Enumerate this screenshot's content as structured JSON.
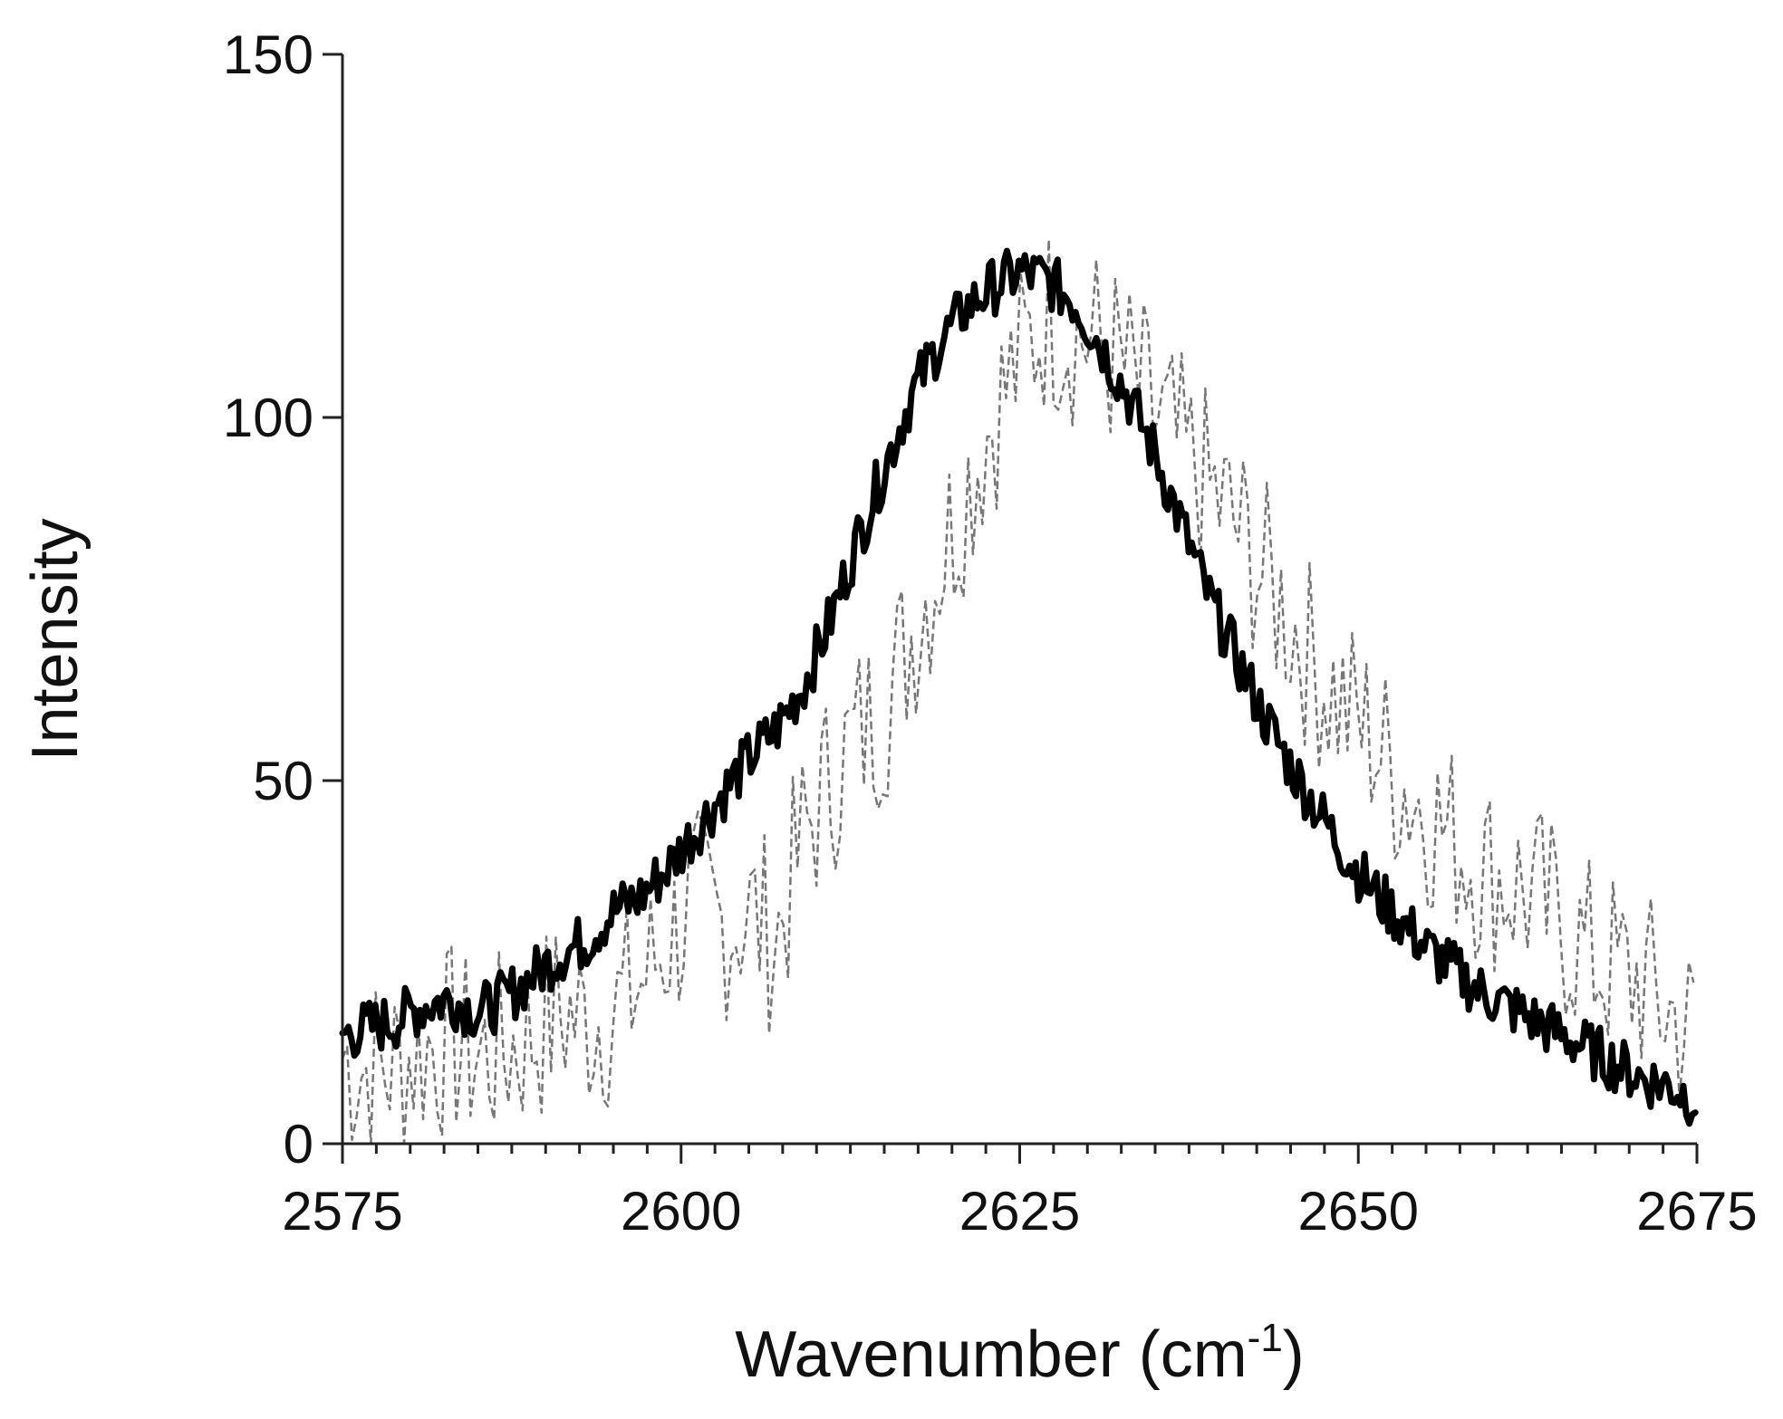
{
  "chart_data": {
    "type": "line",
    "title": "",
    "xlabel": "Wavenumber (cm",
    "xlabel_superscript": "-1",
    "xlabel_suffix": ")",
    "ylabel": "Intensity",
    "xlim": [
      2575,
      2675
    ],
    "ylim": [
      0,
      150
    ],
    "x_ticks": [
      2575,
      2600,
      2625,
      2650,
      2675
    ],
    "y_ticks": [
      0,
      50,
      100,
      150
    ],
    "x_tick_labels": [
      "2575",
      "2600",
      "2625",
      "2650",
      "2675"
    ],
    "y_tick_labels": [
      "0",
      "50",
      "100",
      "150"
    ],
    "x_minor_step": 2.5,
    "grid": false,
    "legend": "none",
    "series": [
      {
        "style": "dashed",
        "color": "#777777",
        "x": [
          2575,
          2577,
          2579,
          2581,
          2583,
          2585,
          2587,
          2589,
          2591,
          2593,
          2595,
          2597,
          2599,
          2601,
          2603,
          2605,
          2607,
          2609,
          2611,
          2613,
          2615,
          2617,
          2619,
          2621,
          2623,
          2625,
          2627,
          2629,
          2631,
          2633,
          2635,
          2637,
          2639,
          2641,
          2643,
          2645,
          2647,
          2649,
          2651,
          2653,
          2655,
          2657,
          2659,
          2661,
          2663,
          2665,
          2667,
          2669,
          2671,
          2673,
          2675
        ],
        "y": [
          12,
          10,
          11,
          13,
          14,
          12,
          13,
          15,
          18,
          17,
          18,
          22,
          28,
          33,
          30,
          32,
          28,
          42,
          50,
          56,
          60,
          70,
          80,
          90,
          100,
          108,
          114,
          112,
          110,
          106,
          100,
          95,
          90,
          85,
          78,
          72,
          65,
          60,
          56,
          50,
          46,
          42,
          38,
          36,
          34,
          30,
          26,
          24,
          22,
          18,
          15
        ]
      },
      {
        "style": "solid",
        "color": "#000000",
        "x": [
          2575,
          2577,
          2579,
          2581,
          2583,
          2585,
          2587,
          2589,
          2591,
          2593,
          2595,
          2597,
          2599,
          2601,
          2603,
          2605,
          2607,
          2609,
          2611,
          2613,
          2615,
          2617,
          2619,
          2621,
          2623,
          2625,
          2627,
          2629,
          2631,
          2633,
          2635,
          2637,
          2639,
          2641,
          2643,
          2645,
          2647,
          2649,
          2651,
          2653,
          2655,
          2657,
          2659,
          2661,
          2663,
          2665,
          2667,
          2669,
          2671,
          2673,
          2675
        ],
        "y": [
          15,
          16,
          17,
          19,
          20,
          18,
          20,
          23,
          26,
          28,
          32,
          34,
          38,
          43,
          48,
          53,
          57,
          63,
          72,
          83,
          93,
          103,
          110,
          115,
          118,
          120,
          119,
          116,
          110,
          103,
          95,
          85,
          75,
          67,
          59,
          52,
          46,
          40,
          35,
          31,
          27,
          24,
          21,
          19,
          17,
          15,
          13,
          11,
          9,
          8,
          6
        ]
      }
    ]
  }
}
